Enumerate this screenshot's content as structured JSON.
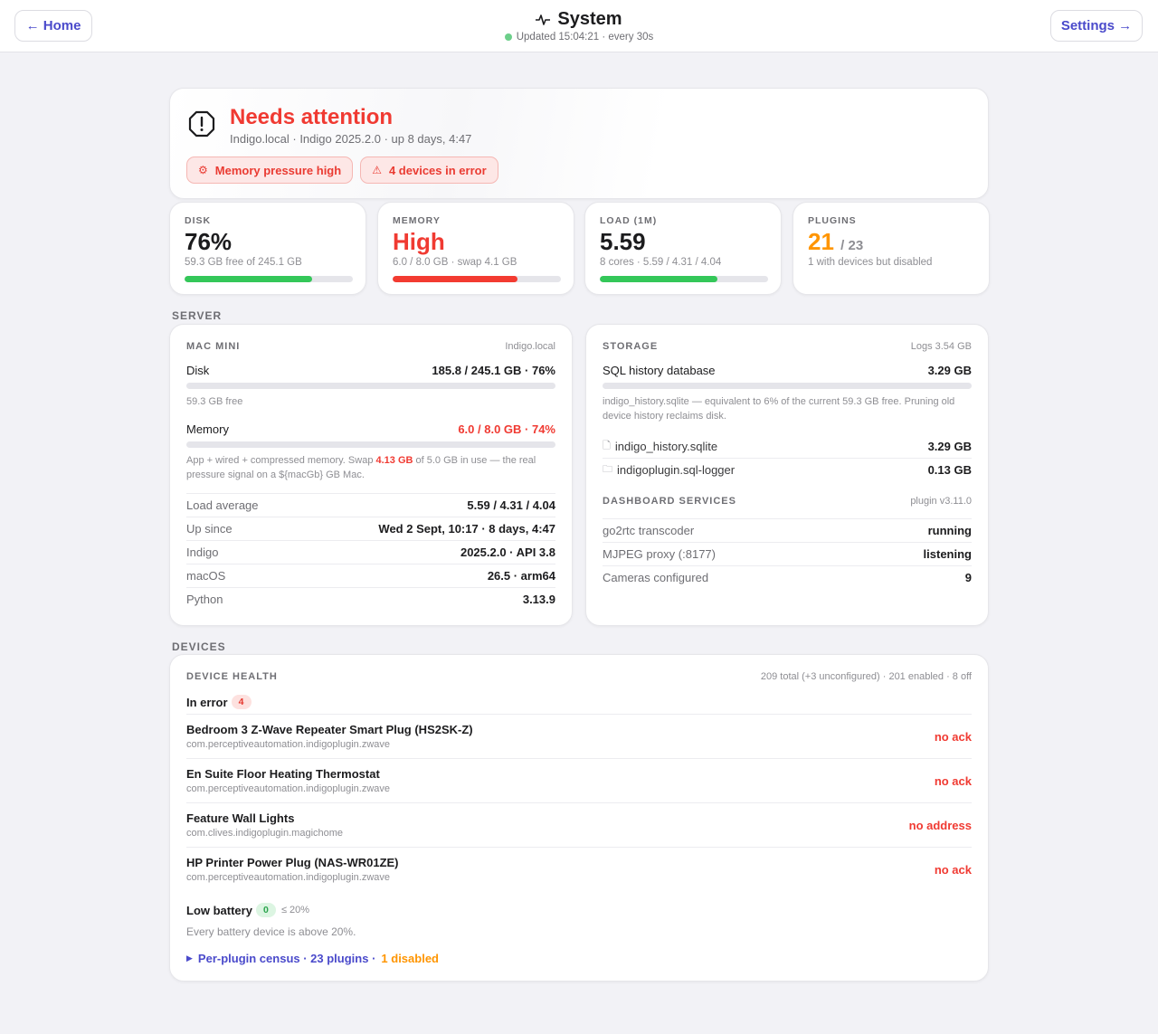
{
  "header": {
    "home_label": "← Home",
    "title": "System",
    "updated": "Updated 15:04:21 · every 30s",
    "settings_label": "Settings →"
  },
  "hero": {
    "title": "Needs attention",
    "subtitle": "Indigo.local · Indigo 2025.2.0 · up 8 days, 4:47",
    "chips": [
      {
        "icon": "⚙",
        "label": "Memory pressure high"
      },
      {
        "icon": "⚠",
        "label": "4 devices in error"
      }
    ]
  },
  "stats": {
    "disk": {
      "label": "DISK",
      "value": "76%",
      "sub": "59.3 GB free of 245.1 GB",
      "percent": 76
    },
    "memory": {
      "label": "MEMORY",
      "value": "High",
      "sub": "6.0 / 8.0 GB · swap 4.1 GB",
      "percent": 74
    },
    "load": {
      "label": "LOAD (1M)",
      "value": "5.59",
      "sub": "8 cores · 5.59 / 4.31 / 4.04",
      "percent": 70
    },
    "plugins": {
      "label": "PLUGINS",
      "value": "21",
      "of": "/ 23",
      "sub": "1 with devices but disabled"
    }
  },
  "sections": {
    "server": "SERVER",
    "devices": "DEVICES"
  },
  "mac": {
    "heading": "MAC MINI",
    "host": "Indigo.local",
    "disk_label": "Disk",
    "disk_value": "185.8 / 245.1 GB · 76%",
    "disk_percent": 76,
    "disk_free": "59.3 GB free",
    "memory_label": "Memory",
    "memory_value": "6.0 / 8.0 GB · 74%",
    "memory_percent": 74,
    "memory_note_a": "App + wired + compressed memory. Swap ",
    "memory_note_swap": "4.13 GB",
    "memory_note_b": " of 5.0 GB in use — the real pressure signal on a ${macGb} GB Mac.",
    "rows": [
      {
        "k": "Load average",
        "v": "5.59 / 4.31 / 4.04"
      },
      {
        "k": "Up since",
        "v": "Wed 2 Sept, 10:17 · 8 days, 4:47"
      },
      {
        "k": "Indigo",
        "v": "2025.2.0 · API 3.8"
      },
      {
        "k": "macOS",
        "v": "26.5 · arm64"
      },
      {
        "k": "Python",
        "v": "3.13.9"
      }
    ]
  },
  "storage": {
    "heading": "STORAGE",
    "logs": "Logs 3.54 GB",
    "db_label": "SQL history database",
    "db_value": "3.29 GB",
    "db_percent": 6,
    "db_note": "indigo_history.sqlite — equivalent to 6% of the current 59.3 GB free. Pruning old device history reclaims disk.",
    "files": [
      {
        "icon": "🗋",
        "k": "indigo_history.sqlite",
        "v": "3.29 GB"
      },
      {
        "icon": "🗀",
        "k": "indigoplugin.sql-logger",
        "v": "0.13 GB"
      }
    ],
    "services_heading": "DASHBOARD SERVICES",
    "services_version": "plugin v3.11.0",
    "services": [
      {
        "k": "go2rtc transcoder",
        "v": "running"
      },
      {
        "k": "MJPEG proxy (:8177)",
        "v": "listening"
      },
      {
        "k": "Cameras configured",
        "v": "9"
      }
    ]
  },
  "devices": {
    "heading": "DEVICE HEALTH",
    "summary": "209 total (+3 unconfigured) · 201 enabled · 8 off",
    "error_label": "In error",
    "error_count": "4",
    "errors": [
      {
        "name": "Bedroom 3 Z-Wave Repeater Smart Plug (HS2SK-Z)",
        "pkg": "com.perceptiveautomation.indigoplugin.zwave",
        "status": "no ack"
      },
      {
        "name": "En Suite Floor Heating Thermostat",
        "pkg": "com.perceptiveautomation.indigoplugin.zwave",
        "status": "no ack"
      },
      {
        "name": "Feature Wall Lights",
        "pkg": "com.clives.indigoplugin.magichome",
        "status": "no address"
      },
      {
        "name": "HP Printer Power Plug (NAS-WR01ZE)",
        "pkg": "com.perceptiveautomation.indigoplugin.zwave",
        "status": "no ack"
      }
    ],
    "battery_label": "Low battery",
    "battery_count": "0",
    "battery_threshold": "≤ 20%",
    "battery_note": "Every battery device is above 20%.",
    "census_label": "Per-plugin census · 23 plugins ·",
    "census_disabled": "1 disabled"
  },
  "colors": {
    "accent": "#4a4acb",
    "error": "#f03a32",
    "ok": "#34c759",
    "warn": "#ff9500"
  }
}
